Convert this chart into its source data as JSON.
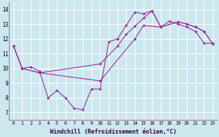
{
  "xlabel": "Windchill (Refroidissement éolien,°C)",
  "xlim": [
    -0.5,
    23.5
  ],
  "ylim": [
    6.5,
    14.5
  ],
  "yticks": [
    7,
    8,
    9,
    10,
    11,
    12,
    13,
    14
  ],
  "xticks": [
    0,
    1,
    2,
    3,
    4,
    5,
    6,
    7,
    8,
    9,
    10,
    11,
    12,
    13,
    14,
    15,
    16,
    17,
    18,
    19,
    20,
    21,
    22,
    23
  ],
  "bg_color": "#cce8ee",
  "grid_color": "#b8dde4",
  "line_color": "#993399",
  "line1_x": [
    0,
    1,
    2,
    3,
    4,
    5,
    6,
    7,
    8,
    9,
    10,
    11,
    12,
    13,
    14,
    15,
    16,
    17,
    18,
    19,
    20,
    21,
    22,
    23
  ],
  "line1_y": [
    11.5,
    10.0,
    10.1,
    9.8,
    8.0,
    8.5,
    8.0,
    7.3,
    7.2,
    8.6,
    8.6,
    11.8,
    12.0,
    12.9,
    13.8,
    13.7,
    13.9,
    12.8,
    13.2,
    13.0,
    12.8,
    12.5,
    11.7,
    11.7
  ],
  "line2_x": [
    0,
    1,
    3,
    10,
    12,
    13,
    14,
    15,
    16,
    17,
    19,
    20,
    21,
    22,
    23
  ],
  "line2_y": [
    11.5,
    10.0,
    9.7,
    10.3,
    11.5,
    12.3,
    12.85,
    13.4,
    13.9,
    12.8,
    13.15,
    13.0,
    12.8,
    12.5,
    11.65
  ],
  "line3_x": [
    0,
    1,
    3,
    10,
    14,
    15,
    17,
    19,
    20,
    21,
    22,
    23
  ],
  "line3_y": [
    11.5,
    10.0,
    9.7,
    9.15,
    12.0,
    12.9,
    12.8,
    13.15,
    13.0,
    12.8,
    12.5,
    11.65
  ]
}
